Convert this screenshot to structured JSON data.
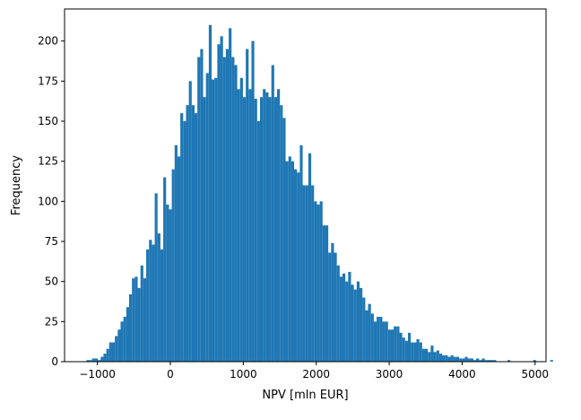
{
  "chart_data": {
    "type": "bar",
    "subtype": "histogram",
    "xlabel": "NPV [mln EUR]",
    "ylabel": "Frequency",
    "xlim": [
      -1450,
      5150
    ],
    "ylim": [
      0,
      220
    ],
    "xticks": [
      -1000,
      0,
      1000,
      2000,
      3000,
      4000,
      5000
    ],
    "xtick_labels": [
      "−1000",
      "0",
      "1000",
      "2000",
      "3000",
      "4000",
      "5000"
    ],
    "yticks": [
      0,
      25,
      50,
      75,
      100,
      125,
      150,
      175,
      200
    ],
    "grid": false,
    "legend": "none",
    "bar_color": "#1f77b4",
    "bin_width": 39,
    "bin_start": -1150,
    "values": [
      1,
      1,
      2,
      2,
      1,
      3,
      5,
      8,
      12,
      12,
      16,
      20,
      25,
      28,
      34,
      42,
      52,
      53,
      46,
      60,
      52,
      70,
      76,
      73,
      105,
      80,
      70,
      115,
      98,
      95,
      120,
      135,
      128,
      155,
      150,
      160,
      175,
      160,
      155,
      190,
      195,
      165,
      180,
      210,
      176,
      177,
      198,
      203,
      190,
      195,
      208,
      190,
      185,
      170,
      177,
      165,
      195,
      170,
      200,
      164,
      150,
      165,
      170,
      168,
      165,
      185,
      165,
      170,
      160,
      152,
      125,
      128,
      125,
      120,
      118,
      135,
      110,
      110,
      130,
      110,
      100,
      98,
      100,
      85,
      85,
      68,
      74,
      68,
      60,
      53,
      55,
      50,
      56,
      48,
      45,
      50,
      46,
      40,
      32,
      36,
      30,
      25,
      28,
      28,
      25,
      25,
      20,
      20,
      22,
      22,
      18,
      15,
      13,
      18,
      12,
      12,
      14,
      12,
      8,
      8,
      6,
      10,
      6,
      7,
      5,
      4,
      4,
      3,
      4,
      3,
      3,
      2,
      2,
      3,
      2,
      2,
      1,
      2,
      1,
      2,
      1,
      1,
      1,
      1,
      0,
      0,
      0,
      0,
      1,
      0,
      0,
      0,
      0,
      0,
      0,
      0,
      0,
      1,
      0,
      0,
      0,
      0,
      0,
      1,
      0,
      0,
      0,
      0,
      0,
      0,
      0,
      0,
      0,
      0,
      0,
      0,
      1
    ]
  }
}
